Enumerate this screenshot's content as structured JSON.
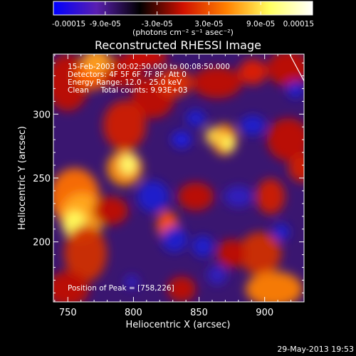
{
  "colorbar": {
    "tick_labels": [
      "-0.00015",
      "-9.0e-05",
      "-3.0e-05",
      "3.0e-05",
      "9.0e-05",
      "0.00015"
    ],
    "tick_values": [
      -0.00015,
      -9e-05,
      -3e-05,
      3e-05,
      9e-05,
      0.00015
    ],
    "range": [
      -0.00015,
      0.00015
    ],
    "units_label": "(photons cm⁻² s⁻¹ asec⁻²)",
    "colormap": [
      "#0000ff",
      "#5a1fb0",
      "#000000",
      "#d01000",
      "#ff8000",
      "#ffff60",
      "#ffffff"
    ]
  },
  "image": {
    "title": "Reconstructed RHESSI Image",
    "annotations": [
      "15-Feb-2003 00:02:50.000 to 00:08:50.000",
      "Detectors: 4F 5F 6F 7F 8F, Att 0",
      "Energy Range: 12.0 - 25.0 keV",
      "Clean     Total counts: 9.93E+03"
    ],
    "peak_label": "Position of Peak = [758,226]",
    "xlabel": "Heliocentric X (arcsec)",
    "ylabel": "Heliocentric Y (arcsec)",
    "x_ticks": [
      "750",
      "800",
      "850",
      "900"
    ],
    "y_ticks": [
      "200",
      "250",
      "300"
    ],
    "x_tick_values": [
      750,
      800,
      850,
      900
    ],
    "y_tick_values": [
      200,
      250,
      300
    ],
    "xlim": [
      739,
      930
    ],
    "ylim": [
      153,
      347
    ],
    "peak": [
      758,
      226
    ],
    "limb_line": [
      [
        919,
        347
      ],
      [
        930,
        326
      ]
    ]
  },
  "footer": {
    "timestamp": "29-May-2013 19:53"
  }
}
